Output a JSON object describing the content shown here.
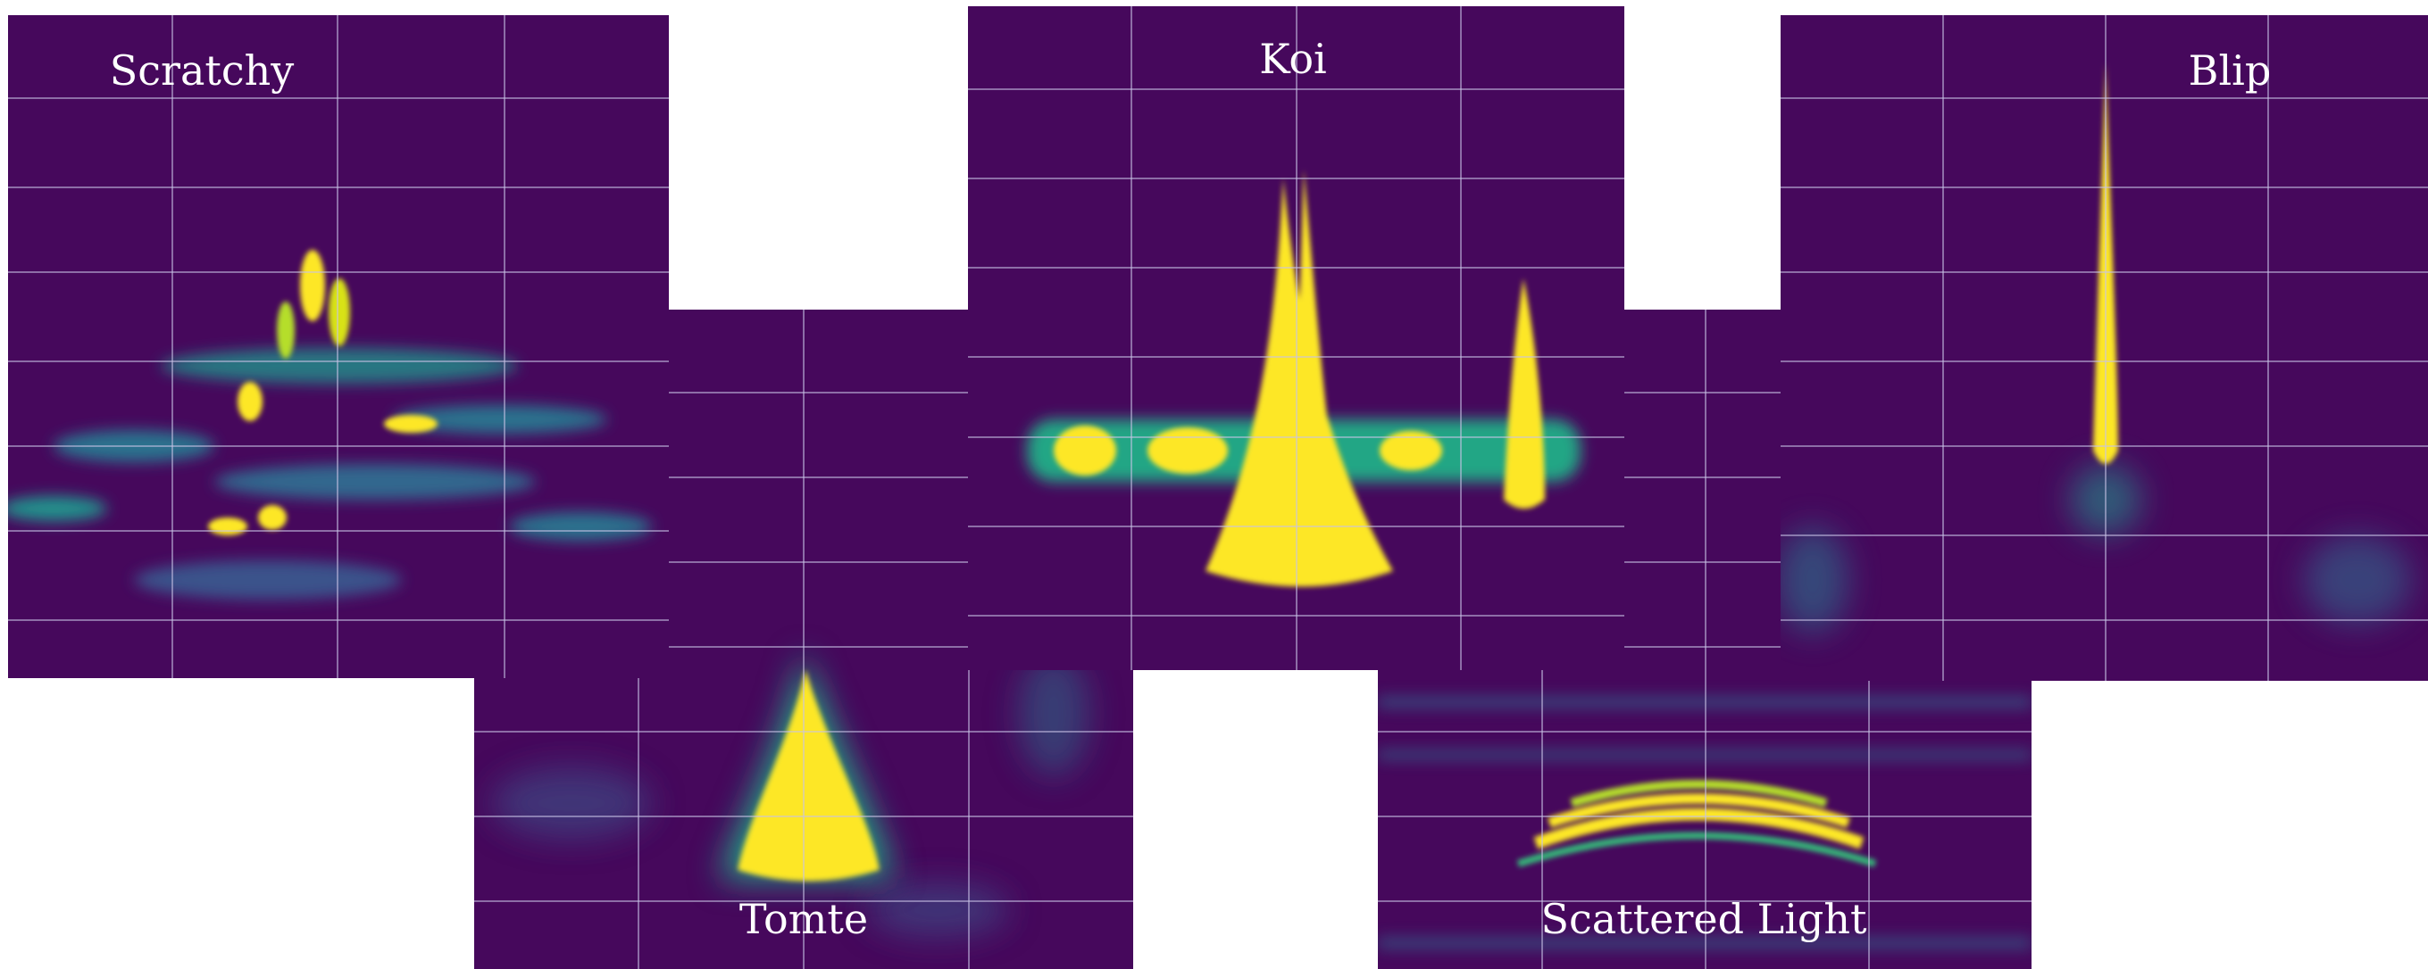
{
  "panels": [
    {
      "label": "Scratchy"
    },
    {
      "label": "Tomte"
    },
    {
      "label": "Koi"
    },
    {
      "label": "Scattered Light"
    },
    {
      "label": "Blip"
    }
  ]
}
